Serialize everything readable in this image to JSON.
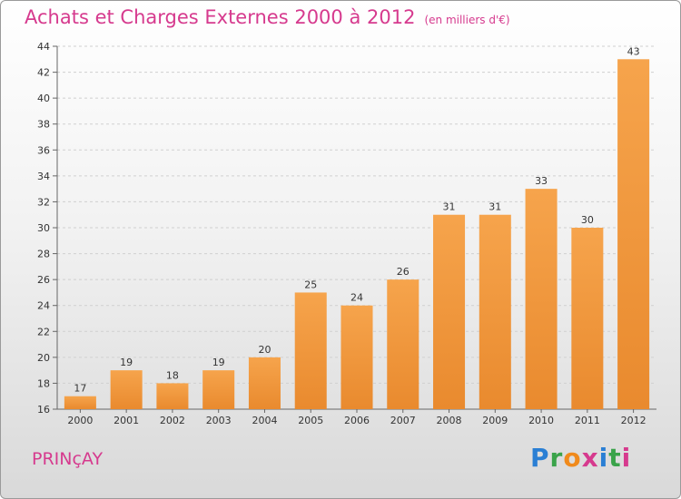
{
  "header": {
    "title": "Achats et Charges Externes 2000 à 2012",
    "subtitle": "(en milliers d'€)"
  },
  "footer": {
    "place": "PRINçAY",
    "logo_letters": [
      "P",
      "r",
      "o",
      "x",
      "i",
      "t",
      "i"
    ],
    "logo_colors": [
      "#2a7fd4",
      "#3aa34a",
      "#f08a1c",
      "#d63a8e",
      "#2a7fd4",
      "#3aa34a",
      "#d63a8e"
    ]
  },
  "colors": {
    "bar": "#e98a2e",
    "bar_light": "#f6a44c",
    "title": "#d63a8e"
  },
  "chart_data": {
    "type": "bar",
    "categories": [
      "2000",
      "2001",
      "2002",
      "2003",
      "2004",
      "2005",
      "2006",
      "2007",
      "2008",
      "2009",
      "2010",
      "2011",
      "2012"
    ],
    "values": [
      17,
      19,
      18,
      19,
      20,
      25,
      24,
      26,
      31,
      31,
      33,
      30,
      43
    ],
    "ylim": [
      16,
      44
    ],
    "yticks": [
      16,
      18,
      20,
      22,
      24,
      26,
      28,
      30,
      32,
      34,
      36,
      38,
      40,
      42,
      44
    ],
    "grid": true
  }
}
